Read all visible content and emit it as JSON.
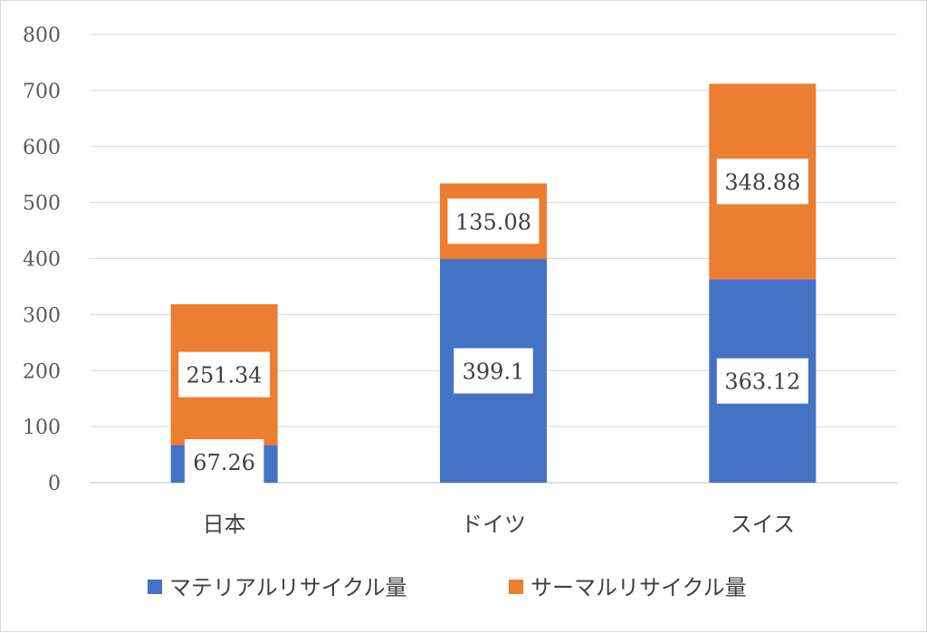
{
  "chart_data": {
    "type": "bar",
    "stacked": true,
    "categories": [
      "日本",
      "ドイツ",
      "スイス"
    ],
    "series": [
      {
        "name": "マテリアルリサイクル量",
        "values": [
          67.26,
          399.1,
          363.12
        ],
        "labels": [
          "67.26",
          "399.1",
          "363.12"
        ],
        "color": "#4472C4"
      },
      {
        "name": "サーマルリサイクル量",
        "values": [
          251.34,
          135.08,
          348.88
        ],
        "labels": [
          "251.34",
          "135.08",
          "348.88"
        ],
        "color": "#ED7D31"
      }
    ],
    "ylim": [
      0,
      800
    ],
    "yticks": [
      0,
      100,
      200,
      300,
      400,
      500,
      600,
      700,
      800
    ],
    "grid": true,
    "legend": "bottom",
    "title": "",
    "xlabel": "",
    "ylabel": ""
  }
}
